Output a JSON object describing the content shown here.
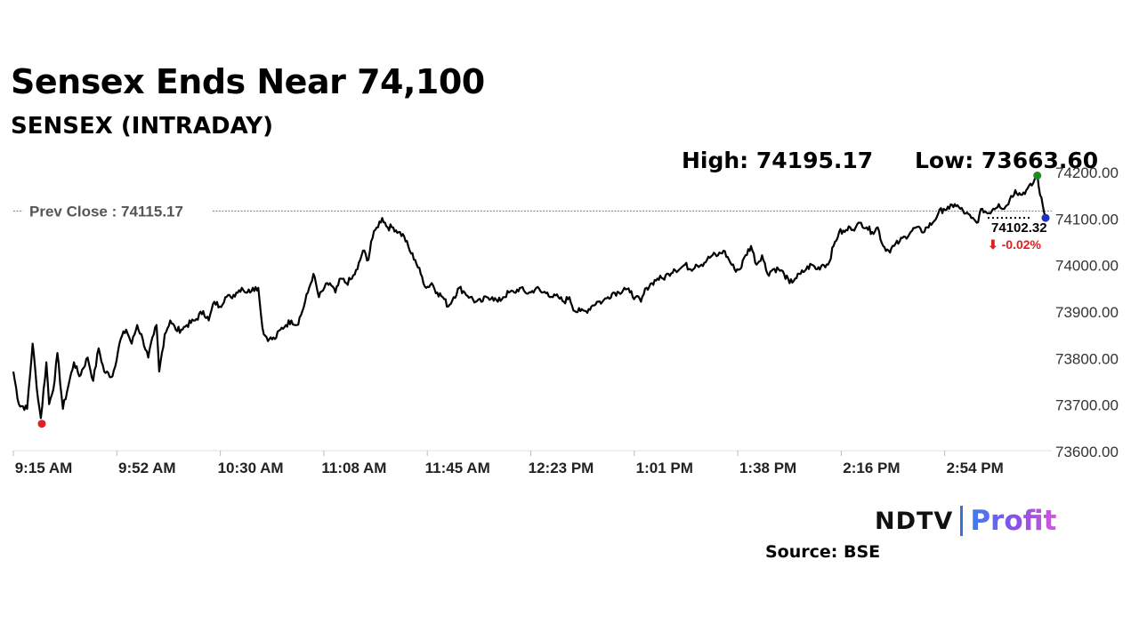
{
  "headline": "Sensex Ends Near 74,100",
  "subtitle": "SENSEX (INTRADAY)",
  "stats": {
    "high": "High: 74195.17",
    "low": "Low: 73663.60"
  },
  "source": "Source: BSE",
  "logo": {
    "ndtv": "NDTV",
    "profit": "Profit"
  },
  "colors": {
    "line": "#000000",
    "prev_close": "#d9534f",
    "high_marker": "#1e8c1e",
    "low_marker": "#e02020",
    "last_marker": "#1f2fbf",
    "change": "#e02020"
  },
  "chart_data": {
    "type": "line",
    "x_ticks": [
      "9:15 AM",
      "9:52 AM",
      "10:30 AM",
      "11:08 AM",
      "11:45 AM",
      "12:23 PM",
      "1:01 PM",
      "1:38 PM",
      "2:16 PM",
      "2:54 PM"
    ],
    "y_ticks": [
      "74200.00",
      "74100.00",
      "74000.00",
      "73900.00",
      "73800.00",
      "73700.00",
      "73600.00"
    ],
    "ylim": [
      73600,
      74200
    ],
    "x_range_minutes": [
      0,
      375
    ],
    "prev_close": 74115.17,
    "prev_close_label": "Prev Close : 74115.17",
    "last_value": 74102.32,
    "last_label": "74102.32",
    "change_label": "⬇ -0.02%",
    "high_point": [
      372,
      74195.17
    ],
    "low_point": [
      10,
      73663.6
    ],
    "series": [
      {
        "values": [
          [
            0,
            73770
          ],
          [
            2,
            73700
          ],
          [
            5,
            73690
          ],
          [
            7,
            73830
          ],
          [
            9,
            73710
          ],
          [
            10,
            73670
          ],
          [
            12,
            73790
          ],
          [
            13,
            73700
          ],
          [
            15,
            73750
          ],
          [
            16,
            73810
          ],
          [
            18,
            73690
          ],
          [
            20,
            73740
          ],
          [
            22,
            73790
          ],
          [
            24,
            73760
          ],
          [
            27,
            73800
          ],
          [
            29,
            73750
          ],
          [
            31,
            73820
          ],
          [
            33,
            73770
          ],
          [
            36,
            73760
          ],
          [
            39,
            73840
          ],
          [
            41,
            73860
          ],
          [
            43,
            73830
          ],
          [
            45,
            73870
          ],
          [
            47,
            73840
          ],
          [
            49,
            73800
          ],
          [
            51,
            73850
          ],
          [
            52,
            73870
          ],
          [
            53,
            73770
          ],
          [
            55,
            73850
          ],
          [
            57,
            73880
          ],
          [
            59,
            73860
          ],
          [
            61,
            73860
          ],
          [
            63,
            73870
          ],
          [
            66,
            73880
          ],
          [
            69,
            73900
          ],
          [
            71,
            73880
          ],
          [
            73,
            73920
          ],
          [
            75,
            73910
          ],
          [
            77,
            73930
          ],
          [
            79,
            73930
          ],
          [
            81,
            73940
          ],
          [
            83,
            73950
          ],
          [
            85,
            73940
          ],
          [
            87,
            73950
          ],
          [
            89,
            73950
          ],
          [
            90,
            73890
          ],
          [
            91,
            73850
          ],
          [
            93,
            73840
          ],
          [
            95,
            73840
          ],
          [
            97,
            73860
          ],
          [
            99,
            73870
          ],
          [
            101,
            73880
          ],
          [
            103,
            73870
          ],
          [
            105,
            73900
          ],
          [
            107,
            73940
          ],
          [
            109,
            73980
          ],
          [
            111,
            73930
          ],
          [
            113,
            73950
          ],
          [
            115,
            73960
          ],
          [
            117,
            73940
          ],
          [
            119,
            73970
          ],
          [
            121,
            73960
          ],
          [
            123,
            73970
          ],
          [
            125,
            73990
          ],
          [
            127,
            74030
          ],
          [
            129,
            74010
          ],
          [
            130,
            74050
          ],
          [
            132,
            74080
          ],
          [
            134,
            74100
          ],
          [
            136,
            74080
          ],
          [
            138,
            74080
          ],
          [
            140,
            74070
          ],
          [
            142,
            74060
          ],
          [
            144,
            74030
          ],
          [
            146,
            74010
          ],
          [
            148,
            73980
          ],
          [
            150,
            73950
          ],
          [
            152,
            73960
          ],
          [
            154,
            73940
          ],
          [
            156,
            73930
          ],
          [
            158,
            73910
          ],
          [
            160,
            73930
          ],
          [
            162,
            73950
          ],
          [
            164,
            73940
          ],
          [
            166,
            73930
          ],
          [
            168,
            73920
          ],
          [
            170,
            73920
          ],
          [
            172,
            73930
          ],
          [
            174,
            73930
          ],
          [
            176,
            73920
          ],
          [
            178,
            73930
          ],
          [
            180,
            73940
          ],
          [
            182,
            73940
          ],
          [
            184,
            73950
          ],
          [
            186,
            73940
          ],
          [
            188,
            73940
          ],
          [
            190,
            73950
          ],
          [
            192,
            73940
          ],
          [
            194,
            73940
          ],
          [
            196,
            73930
          ],
          [
            198,
            73930
          ],
          [
            200,
            73920
          ],
          [
            202,
            73930
          ],
          [
            204,
            73900
          ],
          [
            206,
            73900
          ],
          [
            208,
            73900
          ],
          [
            210,
            73910
          ],
          [
            212,
            73920
          ],
          [
            214,
            73920
          ],
          [
            216,
            73930
          ],
          [
            218,
            73940
          ],
          [
            220,
            73940
          ],
          [
            222,
            73950
          ],
          [
            224,
            73940
          ],
          [
            226,
            73930
          ],
          [
            228,
            73920
          ],
          [
            230,
            73950
          ],
          [
            232,
            73960
          ],
          [
            234,
            73970
          ],
          [
            236,
            73970
          ],
          [
            238,
            73980
          ],
          [
            240,
            73990
          ],
          [
            242,
            73990
          ],
          [
            244,
            74000
          ],
          [
            246,
            73990
          ],
          [
            248,
            74000
          ],
          [
            250,
            74000
          ],
          [
            252,
            74010
          ],
          [
            254,
            74020
          ],
          [
            256,
            74020
          ],
          [
            258,
            74030
          ],
          [
            260,
            74010
          ],
          [
            262,
            73990
          ],
          [
            264,
            73990
          ],
          [
            266,
            74020
          ],
          [
            268,
            74040
          ],
          [
            270,
            74000
          ],
          [
            272,
            74020
          ],
          [
            274,
            73980
          ],
          [
            276,
            73990
          ],
          [
            278,
            73990
          ],
          [
            280,
            73980
          ],
          [
            282,
            73960
          ],
          [
            284,
            73970
          ],
          [
            286,
            73980
          ],
          [
            288,
            73990
          ],
          [
            290,
            74000
          ],
          [
            292,
            73990
          ],
          [
            294,
            74000
          ],
          [
            296,
            74000
          ],
          [
            298,
            74040
          ],
          [
            300,
            74070
          ],
          [
            302,
            74070
          ],
          [
            304,
            74080
          ],
          [
            306,
            74080
          ],
          [
            308,
            74090
          ],
          [
            310,
            74080
          ],
          [
            312,
            74070
          ],
          [
            314,
            74080
          ],
          [
            316,
            74040
          ],
          [
            318,
            74030
          ],
          [
            320,
            74040
          ],
          [
            322,
            74050
          ],
          [
            324,
            74060
          ],
          [
            326,
            74070
          ],
          [
            328,
            74080
          ],
          [
            330,
            74070
          ],
          [
            332,
            74080
          ],
          [
            334,
            74090
          ],
          [
            336,
            74110
          ],
          [
            338,
            74120
          ],
          [
            340,
            74120
          ],
          [
            342,
            74130
          ],
          [
            344,
            74120
          ],
          [
            346,
            74110
          ],
          [
            348,
            74100
          ],
          [
            350,
            74090
          ],
          [
            352,
            74120
          ],
          [
            354,
            74110
          ],
          [
            356,
            74120
          ],
          [
            358,
            74130
          ],
          [
            360,
            74120
          ],
          [
            362,
            74140
          ],
          [
            364,
            74160
          ],
          [
            366,
            74150
          ],
          [
            368,
            74160
          ],
          [
            370,
            74170
          ],
          [
            372,
            74195.17
          ],
          [
            373,
            74150
          ],
          [
            375,
            74102.32
          ]
        ]
      }
    ]
  }
}
